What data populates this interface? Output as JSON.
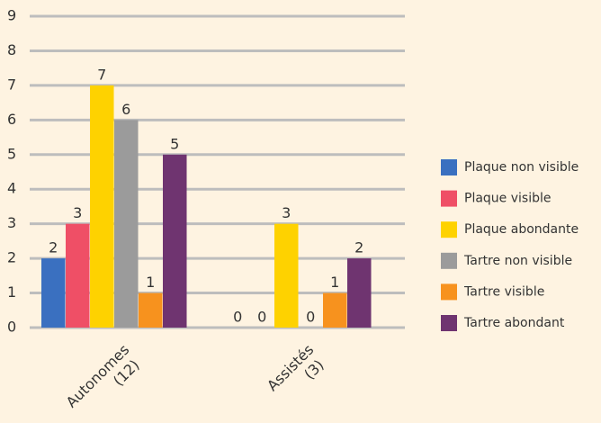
{
  "chart_data": {
    "type": "bar",
    "categories": [
      [
        "Autonomes",
        "(12)"
      ],
      [
        "Assistés",
        "(3)"
      ]
    ],
    "series": [
      {
        "name": "Plaque non visible",
        "color": "#3a70c0",
        "values": [
          2,
          0
        ]
      },
      {
        "name": "Plaque visible",
        "color": "#ef4f66",
        "values": [
          3,
          0
        ]
      },
      {
        "name": "Plaque abondante",
        "color": "#fed200",
        "values": [
          7,
          3
        ]
      },
      {
        "name": "Tartre non visible",
        "color": "#9b9b9b",
        "values": [
          6,
          0
        ]
      },
      {
        "name": "Tartre visible",
        "color": "#f7921e",
        "values": [
          1,
          1
        ]
      },
      {
        "name": "Tartre abondant",
        "color": "#6f3470",
        "values": [
          5,
          2
        ]
      }
    ],
    "ylim": [
      0,
      9
    ],
    "yticks": [
      0,
      1,
      2,
      3,
      4,
      5,
      6,
      7,
      8,
      9
    ],
    "grid": true,
    "legend": "right"
  }
}
